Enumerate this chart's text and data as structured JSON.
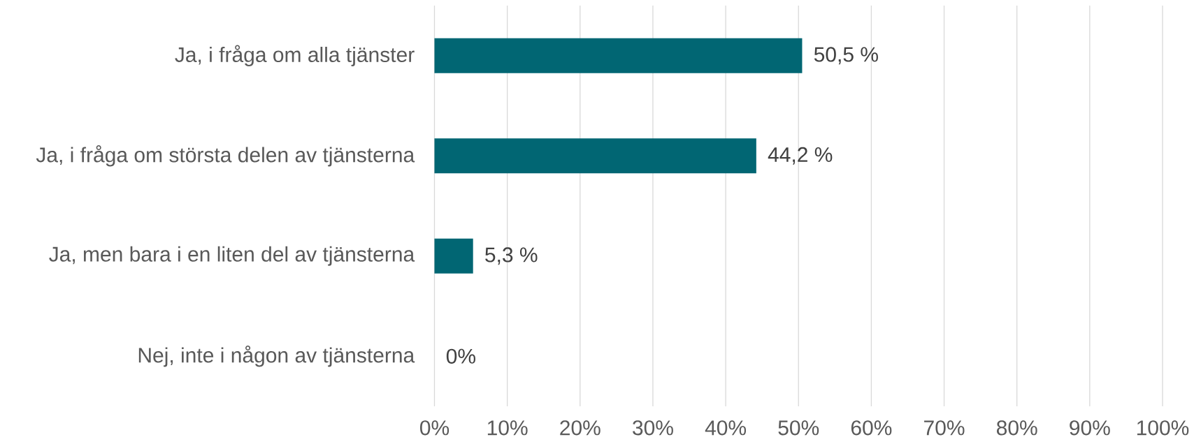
{
  "chart_data": {
    "type": "bar",
    "orientation": "horizontal",
    "categories": [
      "Ja, i fråga om alla tjänster",
      "Ja, i fråga om största delen av tjänsterna",
      "Ja, men bara i en liten del av tjänsterna",
      "Nej, inte i någon av tjänsterna"
    ],
    "values": [
      50.5,
      44.2,
      5.3,
      0
    ],
    "color": "#016673",
    "value_labels": [
      "50,5 %",
      "44,2 %",
      "5,3 %",
      "0%"
    ],
    "xlim": [
      0,
      100
    ],
    "xticks": [
      {
        "value": 0,
        "label": "0%"
      },
      {
        "value": 10,
        "label": "10%"
      },
      {
        "value": 20,
        "label": "20%"
      },
      {
        "value": 30,
        "label": "30%"
      },
      {
        "value": 40,
        "label": "40%"
      },
      {
        "value": 50,
        "label": "50%"
      },
      {
        "value": 60,
        "label": "60%"
      },
      {
        "value": 70,
        "label": "70%"
      },
      {
        "value": 80,
        "label": "80%"
      },
      {
        "value": 90,
        "label": "90%"
      },
      {
        "value": 100,
        "label": "100%"
      }
    ],
    "grid": "x"
  }
}
